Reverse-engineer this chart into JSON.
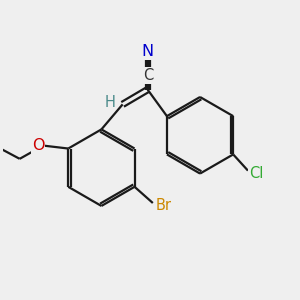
{
  "bg_color": "#efefef",
  "bond_color": "#1a1a1a",
  "bond_width": 1.6,
  "atom_colors": {
    "N": "#0000cc",
    "O": "#cc0000",
    "Cl": "#33aa33",
    "Br": "#cc8800",
    "H": "#4a8a8a",
    "C": "#333333"
  },
  "font_size": 10.5,
  "xlim": [
    0,
    10
  ],
  "ylim": [
    0,
    10
  ]
}
